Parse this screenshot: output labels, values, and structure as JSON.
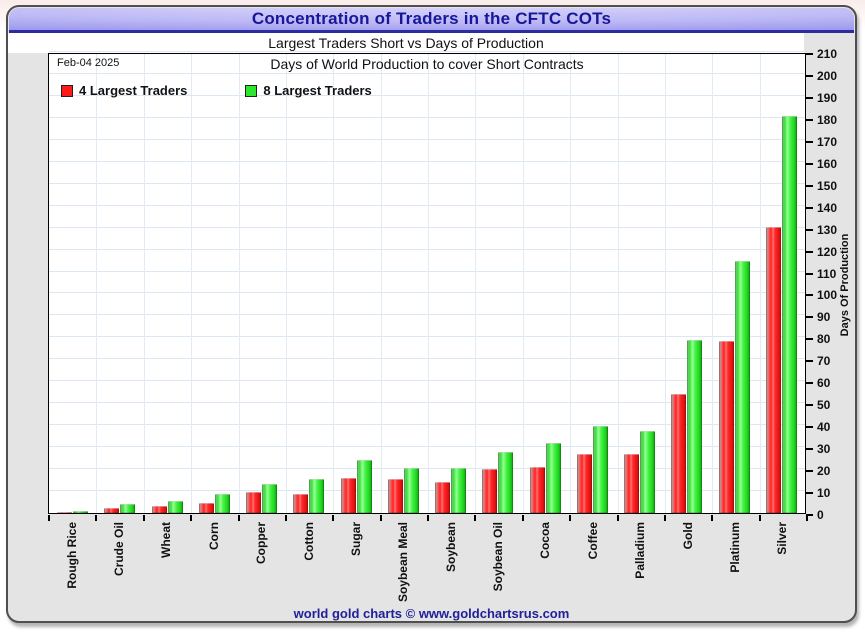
{
  "window": {
    "title": "Concentration of Traders in the CFTC COTs",
    "subtitle": "Largest Traders Short vs Days of Production"
  },
  "chart_data": {
    "type": "bar",
    "title": "Days of World Production to cover Short Contracts",
    "date_label": "Feb-04  2025",
    "xlabel": "",
    "ylabel": "Days Of Production",
    "ylim": [
      0,
      210
    ],
    "ytick_step": 10,
    "grid": true,
    "legend_position": "top-left",
    "categories": [
      "Rough Rice",
      "Crude Oil",
      "Wheat",
      "Corn",
      "Copper",
      "Cotton",
      "Sugar",
      "Soybean Meal",
      "Soybean",
      "Soybean Oil",
      "Cocoa",
      "Coffee",
      "Palladium",
      "Gold",
      "Platinum",
      "Silver"
    ],
    "series": [
      {
        "name": "4 Largest Traders",
        "color": "#ff1a1a",
        "values": [
          0.5,
          2.5,
          3,
          4.7,
          9.4,
          8.5,
          16,
          15.5,
          14,
          20,
          21,
          27,
          27,
          54,
          78.5,
          130.5
        ]
      },
      {
        "name": "8 Largest Traders",
        "color": "#2ee62e",
        "values": [
          0.7,
          4.3,
          5.3,
          8.6,
          13,
          15.3,
          24,
          20.5,
          20.5,
          28,
          32,
          39.5,
          37.5,
          79,
          115,
          181
        ]
      }
    ]
  },
  "footer": {
    "text": "world gold charts © www.goldchartsrus.com"
  },
  "colors": {
    "titlebar_gradient_center": "#ddd9fb",
    "titlebar_gradient_edge": "#7573dd",
    "title_text": "#17179a",
    "panel_background": "#e4e4e4",
    "plot_background": "#ffffff",
    "gridline": "#dde7f2",
    "footer_text": "#20209a"
  }
}
